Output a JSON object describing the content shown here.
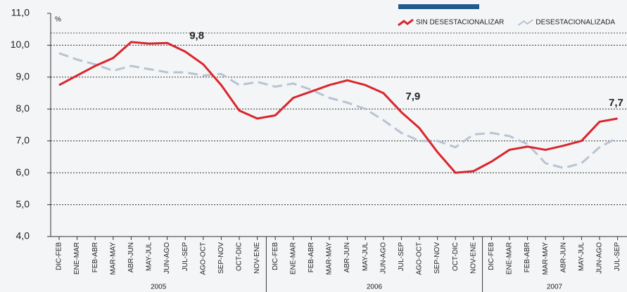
{
  "chart_data": {
    "type": "line",
    "unit": "%",
    "groups": [
      {
        "name": "2005",
        "categories": [
          "DIC-FEB",
          "ENE-MAR",
          "FEB-ABR",
          "MAR-MAY",
          "ABR-JUN",
          "MAY-JUL",
          "JUN-AGO",
          "JUL-SEP",
          "AGO-OCT",
          "SEP-NOV",
          "OCT-DIC",
          "NOV-ENE"
        ]
      },
      {
        "name": "2006",
        "categories": [
          "DIC-FEB",
          "ENE-MAR",
          "FEB-ABR",
          "MAR-MAY",
          "ABR-JUN",
          "MAY-JUL",
          "JUN-AGO",
          "JUL-SEP",
          "AGO-OCT",
          "SEP-NOV",
          "OCT-DIC",
          "NOV-ENE"
        ]
      },
      {
        "name": "2007",
        "categories": [
          "DIC-FEB",
          "ENE-MAR",
          "FEB-ABR",
          "MAR-MAY",
          "ABR-JUN",
          "MAY-JUL",
          "JUN-AGO",
          "JUL-SEP"
        ]
      }
    ],
    "series": [
      {
        "name": "SIN DESESTACIONALIZAR",
        "color": "#d9262c",
        "style": "solid",
        "values": [
          8.75,
          9.05,
          9.35,
          9.6,
          10.1,
          10.05,
          10.07,
          9.8,
          9.4,
          8.75,
          7.95,
          7.7,
          7.8,
          8.35,
          8.55,
          8.75,
          8.9,
          8.75,
          8.5,
          7.9,
          7.4,
          6.65,
          6.0,
          6.05,
          6.35,
          6.72,
          6.82,
          6.72,
          6.85,
          7.0,
          7.6,
          7.7
        ],
        "value_labels": [
          null,
          null,
          null,
          null,
          null,
          null,
          null,
          "9,8",
          null,
          null,
          null,
          null,
          null,
          null,
          null,
          null,
          null,
          null,
          null,
          "7,9",
          null,
          null,
          null,
          null,
          null,
          null,
          null,
          null,
          null,
          null,
          null,
          "7,7"
        ]
      },
      {
        "name": "DESESTACIONALIZADA",
        "color": "#b8c4d2",
        "style": "dashed",
        "values": [
          9.75,
          9.55,
          9.4,
          9.2,
          9.35,
          9.25,
          9.15,
          9.15,
          9.05,
          9.1,
          8.75,
          8.85,
          8.7,
          8.8,
          8.6,
          8.35,
          8.2,
          8.0,
          7.65,
          7.25,
          7.0,
          7.0,
          6.8,
          7.2,
          7.25,
          7.15,
          6.9,
          6.3,
          6.15,
          6.3,
          6.8,
          7.1
        ]
      }
    ],
    "ylim": [
      4,
      11
    ],
    "yticks": [
      {
        "value": 4,
        "label": "4,0"
      },
      {
        "value": 5,
        "label": "5,0"
      },
      {
        "value": 6,
        "label": "6,0"
      },
      {
        "value": 7,
        "label": "7,0"
      },
      {
        "value": 8,
        "label": "8,0"
      },
      {
        "value": 9,
        "label": "9,0"
      },
      {
        "value": 10,
        "label": "10,0"
      },
      {
        "value": 11,
        "label": "11,0"
      }
    ],
    "grid": true
  }
}
